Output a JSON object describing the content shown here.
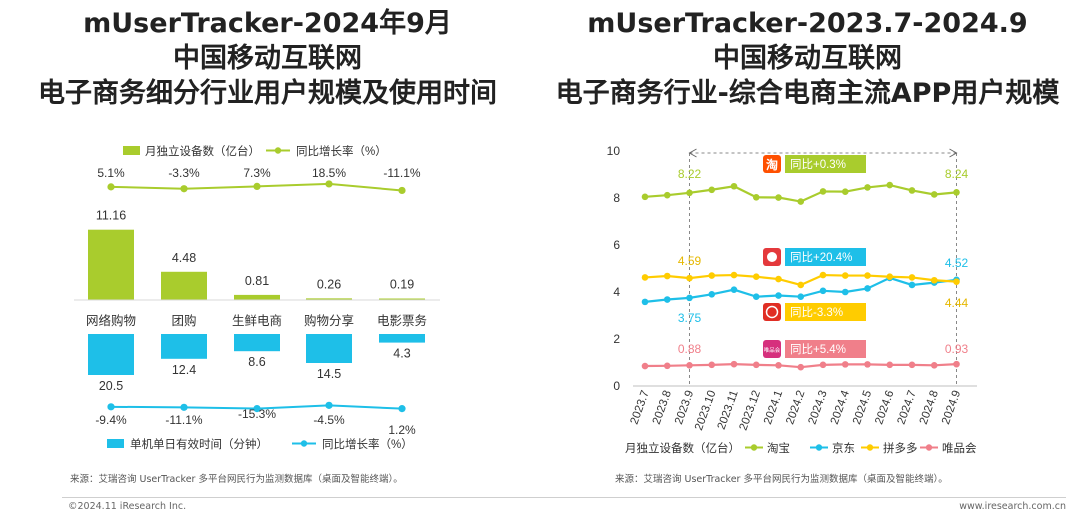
{
  "left_title": {
    "line1": "mUserTracker-2024年9月",
    "line2": "中国移动互联网",
    "line3": "电子商务细分行业用户规模及使用时间"
  },
  "right_title": {
    "line1": "mUserTracker-2023.7-2024.9",
    "line2": "中国移动互联网",
    "line3": "电子商务行业-综合电商主流APP用户规模"
  },
  "colors": {
    "green": "#a9cc2d",
    "cyan": "#1ebfe8",
    "orange": "#ffcc00",
    "pink": "#f07f8a",
    "taobao": "#ff5000",
    "jd": "#e4393c",
    "pdd": "#e02e24",
    "vip": "#d6307d"
  },
  "chart_data": [
    {
      "type": "bar",
      "id": "segment-chart",
      "categories": [
        "网络购物",
        "团购",
        "生鲜电商",
        "购物分享",
        "电影票务"
      ],
      "legend_top": {
        "bar": "月独立设备数（亿台）",
        "line": "同比增长率（%）"
      },
      "legend_bottom": {
        "bar": "单机单日有效时间（分钟）",
        "line": "同比增长率（%）"
      },
      "series": [
        {
          "name": "月独立设备数（亿台）",
          "values": [
            11.16,
            4.48,
            0.81,
            0.26,
            0.19
          ],
          "labels": [
            "11.16",
            "4.48",
            "0.81",
            "0.26",
            "0.19"
          ]
        },
        {
          "name": "同比增长率（%）",
          "values": [
            5.1,
            -3.3,
            7.3,
            18.5,
            -11.1
          ],
          "labels": [
            "5.1%",
            "-3.3%",
            "7.3%",
            "18.5%",
            "-11.1%"
          ]
        },
        {
          "name": "单机单日有效时间（分钟）",
          "values": [
            20.5,
            12.4,
            8.6,
            14.5,
            4.3
          ],
          "labels": [
            "20.5",
            "12.4",
            "8.6",
            "14.5",
            "4.3"
          ]
        },
        {
          "name": "同比增长率（%）",
          "values": [
            -9.4,
            -11.1,
            -15.3,
            -4.5,
            1.2
          ],
          "labels": [
            "-9.4%",
            "-11.1%",
            "-15.3%",
            "-4.5%",
            "1.2%"
          ]
        }
      ],
      "source": "来源：艾瑞咨询 UserTracker 多平台网民行为监测数据库（桌面及智能终端）。"
    },
    {
      "type": "line",
      "id": "app-chart",
      "x": [
        "2023.7",
        "2023.8",
        "2023.9",
        "2023.10",
        "2023.11",
        "2023.12",
        "2024.1",
        "2024.2",
        "2024.3",
        "2024.4",
        "2024.5",
        "2024.6",
        "2024.7",
        "2024.8",
        "2024.9"
      ],
      "ylim": [
        0,
        10
      ],
      "yticks": [
        "0",
        "2",
        "4",
        "6",
        "8",
        "10"
      ],
      "series": [
        {
          "name": "淘宝",
          "values": [
            8.05,
            8.12,
            8.22,
            8.35,
            8.5,
            8.03,
            8.02,
            7.85,
            8.28,
            8.27,
            8.45,
            8.55,
            8.32,
            8.15,
            8.24
          ]
        },
        {
          "name": "京东",
          "values": [
            3.58,
            3.68,
            3.75,
            3.9,
            4.1,
            3.8,
            3.85,
            3.8,
            4.05,
            4.0,
            4.15,
            4.6,
            4.3,
            4.4,
            4.52
          ]
        },
        {
          "name": "拼多多",
          "values": [
            4.62,
            4.68,
            4.59,
            4.7,
            4.72,
            4.65,
            4.55,
            4.3,
            4.72,
            4.7,
            4.7,
            4.65,
            4.62,
            4.5,
            4.44
          ]
        },
        {
          "name": "唯品会",
          "values": [
            0.85,
            0.86,
            0.88,
            0.9,
            0.93,
            0.9,
            0.88,
            0.8,
            0.9,
            0.92,
            0.92,
            0.9,
            0.9,
            0.88,
            0.93
          ]
        }
      ],
      "data_labels": {
        "taobao_start": "8.22",
        "taobao_end": "8.24",
        "pdd_start": "4.59",
        "jd_end": "4.52",
        "jd_start": "3.75",
        "pdd_end": "4.44",
        "vip_start": "0.88",
        "vip_end": "0.93"
      },
      "yoy_badges": {
        "taobao": "同比+0.3%",
        "jd": "同比+20.4%",
        "pdd": "同比-3.3%",
        "vip": "同比+5.4%"
      },
      "logo_text": {
        "taobao": "淘",
        "vip": "唯品会"
      },
      "legend_prefix": "月独立设备数（亿台）",
      "source": "来源：艾瑞咨询 UserTracker 多平台网民行为监测数据库（桌面及智能终端）。"
    }
  ],
  "footer": {
    "left": "©2024.11 iResearch Inc.",
    "right": "www.iresearch.com.cn"
  }
}
